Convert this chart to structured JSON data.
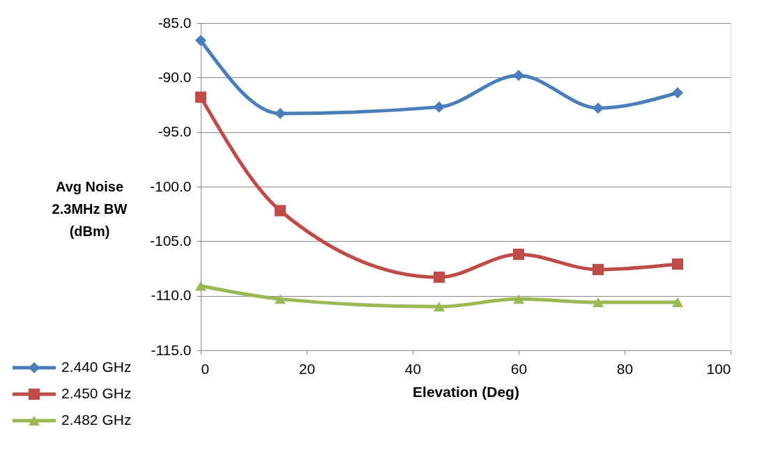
{
  "chart_data": {
    "type": "line",
    "xlabel": "Elevation (Deg)",
    "ylabel": "Avg Noise\n2.3MHz BW\n(dBm)",
    "x": [
      0,
      15,
      45,
      60,
      75,
      90
    ],
    "series": [
      {
        "name": "2.440 GHz",
        "color": "#4a7ebb",
        "marker": "diamond",
        "values": [
          -86.6,
          -93.3,
          -92.7,
          -89.8,
          -92.8,
          -91.4
        ]
      },
      {
        "name": "2.450 GHz",
        "color": "#be4b48",
        "marker": "square",
        "values": [
          -91.8,
          -102.2,
          -108.3,
          -106.2,
          -107.6,
          -107.1
        ]
      },
      {
        "name": "2.482 GHz",
        "color": "#98b954",
        "marker": "triangle",
        "values": [
          -109.1,
          -110.3,
          -111.0,
          -110.3,
          -110.6,
          -110.6
        ]
      }
    ],
    "xlim": [
      0,
      100
    ],
    "xticks": [
      0,
      20,
      40,
      60,
      80,
      100
    ],
    "ylim": [
      -115,
      -85
    ],
    "yticks": [
      {
        "value": -115,
        "label": "-115.0"
      },
      {
        "value": -110,
        "label": "-110.0"
      },
      {
        "value": -105,
        "label": "-105.0"
      },
      {
        "value": -100,
        "label": "-100.0"
      },
      {
        "value": -95,
        "label": "-95.0"
      },
      {
        "value": -90,
        "label": "-90.0"
      },
      {
        "value": -85,
        "label": "-85.0"
      }
    ],
    "grid": "y",
    "legend": "bottom left",
    "line_style": "solid"
  }
}
